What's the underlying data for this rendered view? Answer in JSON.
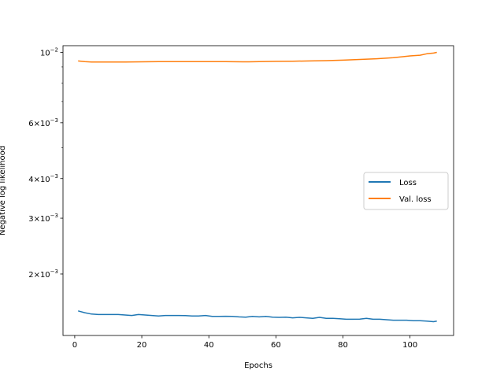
{
  "chart_data": {
    "type": "line",
    "title": "",
    "xlabel": "Epochs",
    "ylabel": "Negative log likelihood",
    "xlim": [
      -3.5,
      113
    ],
    "ylim": [
      0.00128,
      0.0105
    ],
    "yscale": "log",
    "grid": false,
    "legend_position": "center-right",
    "x_ticks": [
      0,
      20,
      40,
      60,
      80,
      100
    ],
    "x_tick_labels": [
      "0",
      "20",
      "40",
      "60",
      "80",
      "100"
    ],
    "y_ticks": [
      0.002,
      0.003,
      0.004,
      0.006,
      0.01
    ],
    "y_tick_labels": [
      {
        "mantissa": "2",
        "exp": "−3"
      },
      {
        "mantissa": "3",
        "exp": "−3"
      },
      {
        "mantissa": "4",
        "exp": "−3"
      },
      {
        "mantissa": "6",
        "exp": "−3"
      },
      {
        "mantissa": "",
        "exp": "−2"
      }
    ],
    "y_minor_ticks": [
      0.005,
      0.007,
      0.008,
      0.009
    ],
    "series": [
      {
        "name": "Loss",
        "color": "#1f77b4",
        "x": [
          1,
          3,
          5,
          7,
          9,
          11,
          13,
          15,
          17,
          19,
          21,
          23,
          25,
          27,
          29,
          31,
          33,
          35,
          37,
          39,
          41,
          43,
          45,
          47,
          49,
          51,
          53,
          55,
          57,
          59,
          61,
          63,
          65,
          67,
          69,
          71,
          73,
          75,
          77,
          79,
          81,
          83,
          85,
          87,
          89,
          91,
          93,
          95,
          97,
          99,
          101,
          103,
          105,
          107,
          108
        ],
        "y": [
          0.00153,
          0.00151,
          0.001495,
          0.00149,
          0.00149,
          0.00149,
          0.00149,
          0.001485,
          0.00148,
          0.00149,
          0.001485,
          0.00148,
          0.001475,
          0.00148,
          0.00148,
          0.00148,
          0.001478,
          0.001475,
          0.001475,
          0.00148,
          0.00147,
          0.00147,
          0.001472,
          0.00147,
          0.001465,
          0.001462,
          0.00147,
          0.001465,
          0.00147,
          0.001462,
          0.00146,
          0.001462,
          0.001455,
          0.00146,
          0.001455,
          0.00145,
          0.00146,
          0.00145,
          0.00145,
          0.001445,
          0.00144,
          0.00144,
          0.001442,
          0.00145,
          0.00144,
          0.00144,
          0.001435,
          0.00143,
          0.00143,
          0.00143,
          0.001425,
          0.001425,
          0.00142,
          0.001415,
          0.00142
        ]
      },
      {
        "name": "Val. loss",
        "color": "#ff7f0e",
        "x": [
          1,
          3,
          5,
          7,
          9,
          11,
          15,
          20,
          25,
          30,
          35,
          40,
          45,
          50,
          52,
          55,
          60,
          65,
          70,
          75,
          80,
          85,
          90,
          95,
          100,
          103,
          105,
          107,
          108
        ],
        "y": [
          0.0094,
          0.00935,
          0.00932,
          0.00932,
          0.00932,
          0.00933,
          0.00933,
          0.00934,
          0.00935,
          0.00935,
          0.00935,
          0.00935,
          0.00935,
          0.00934,
          0.00934,
          0.00935,
          0.00937,
          0.00938,
          0.0094,
          0.00942,
          0.00945,
          0.0095,
          0.00955,
          0.00962,
          0.00975,
          0.0098,
          0.0099,
          0.00995,
          0.01
        ]
      }
    ]
  }
}
